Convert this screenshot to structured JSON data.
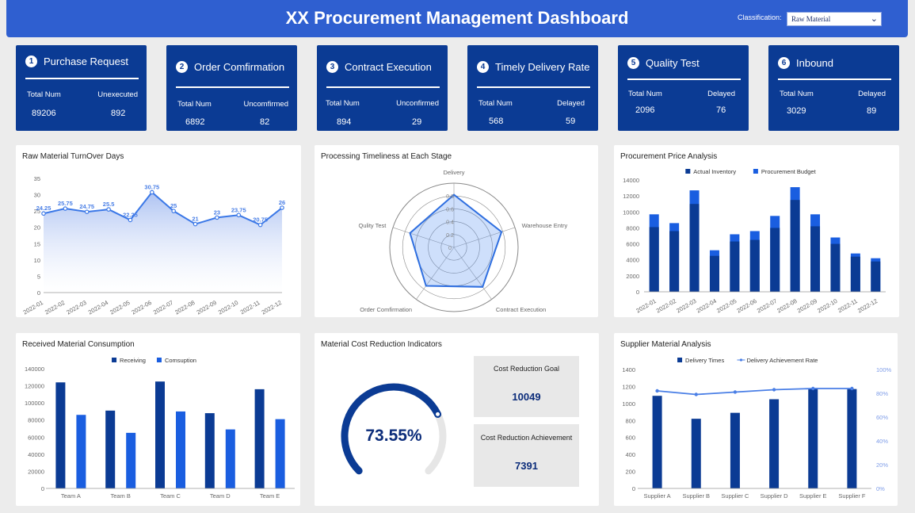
{
  "header": {
    "title": "XX Procurement Management Dashboard",
    "classification_label": "Classification:",
    "classification_value": "Raw Material"
  },
  "kpis": [
    {
      "num": "1",
      "title": "Purchase Request",
      "l1": "Total Num",
      "l2": "Unexecuted",
      "v1": "89206",
      "v2": "892"
    },
    {
      "num": "2",
      "title": "Order Comfirmation",
      "l1": "Total Num",
      "l2": "Uncomfirmed",
      "v1": "6892",
      "v2": "82"
    },
    {
      "num": "3",
      "title": "Contract Execution",
      "l1": "Total Num",
      "l2": "Unconfirmed",
      "v1": "894",
      "v2": "29"
    },
    {
      "num": "4",
      "title": "Timely Delivery Rate",
      "l1": "Total Num",
      "l2": "Delayed",
      "v1": "568",
      "v2": "59"
    },
    {
      "num": "5",
      "title": "Quality Test",
      "l1": "Total Num",
      "l2": "Delayed",
      "v1": "2096",
      "v2": "76"
    },
    {
      "num": "6",
      "title": "Inbound",
      "l1": "Total Num",
      "l2": "Delayed",
      "v1": "3029",
      "v2": "89"
    }
  ],
  "panels": {
    "turnover": "Raw Material TurnOver Days",
    "timeliness": "Processing Timeliness at Each Stage",
    "price": "Procurement Price Analysis",
    "consumption": "Received Material Consumption",
    "cost": "Material Cost Reduction Indicators",
    "supplier": "Supplier Material Analysis"
  },
  "cost_reduction": {
    "percent_label": "73.55%",
    "percent": 73.55,
    "goal_label": "Cost Reduction Goal",
    "goal_value": "10049",
    "achievement_label": "Cost Reduction Achievement",
    "achievement_value": "7391"
  },
  "colors": {
    "dark": "#0b3b94",
    "bright": "#1a5ee0",
    "line": "#3b78e7"
  },
  "chart_data": [
    {
      "type": "area",
      "title": "Raw Material TurnOver Days",
      "categories": [
        "2022-01",
        "2022-02",
        "2022-03",
        "2022-04",
        "2022-05",
        "2022-06",
        "2022-07",
        "2022-08",
        "2022-09",
        "2022-10",
        "2022-11",
        "2022-12"
      ],
      "values": [
        24.25,
        25.75,
        24.75,
        25.5,
        22.25,
        30.75,
        25,
        21,
        23,
        23.75,
        20.75,
        26
      ],
      "labels": [
        "24.25",
        "25.75",
        "24.75",
        "25.5",
        "22.25",
        "30.75",
        "25",
        "21",
        "23",
        "23.75",
        "20.75",
        "26"
      ],
      "ylim": [
        0,
        35
      ],
      "yticks": [
        0,
        5,
        10,
        15,
        20,
        25,
        30,
        35
      ]
    },
    {
      "type": "radar",
      "title": "Processing Timeliness at Each Stage",
      "indicators": [
        "Delivery",
        "Warehouse Entry",
        "Contract Execution",
        "Order Comfirmation",
        "Qulity Test"
      ],
      "values": [
        0.82,
        0.78,
        0.76,
        0.74,
        0.72
      ],
      "ring_labels": [
        "0.8",
        "0.6",
        "0.4",
        "0.2",
        "0"
      ],
      "max": 1
    },
    {
      "type": "bar",
      "title": "Procurement Price Analysis",
      "categories": [
        "2022-01",
        "2022-02",
        "2022-03",
        "2022-04",
        "2022-05",
        "2022-06",
        "2022-07",
        "2022-08",
        "2022-09",
        "2022-10",
        "2022-11",
        "2022-12"
      ],
      "series": [
        {
          "name": "Actual Inventory",
          "values": [
            8100,
            7600,
            11000,
            4500,
            6300,
            6500,
            8000,
            11500,
            8200,
            6000,
            4400,
            3800
          ]
        },
        {
          "name": "Procurement Budget",
          "values": [
            9700,
            8600,
            12700,
            5200,
            7200,
            7600,
            9500,
            13100,
            9700,
            6800,
            4800,
            4200
          ]
        }
      ],
      "ylim": [
        0,
        14000
      ],
      "yticks": [
        0,
        2000,
        4000,
        6000,
        8000,
        10000,
        12000,
        14000
      ]
    },
    {
      "type": "bar",
      "title": "Received Material Consumption",
      "categories": [
        "Team A",
        "Team B",
        "Team C",
        "Team D",
        "Team E"
      ],
      "series": [
        {
          "name": "Receiving",
          "values": [
            124000,
            91000,
            125000,
            88000,
            116000
          ]
        },
        {
          "name": "Comsuption",
          "values": [
            86000,
            65000,
            90000,
            69000,
            81000
          ]
        }
      ],
      "ylim": [
        0,
        140000
      ],
      "yticks": [
        0,
        20000,
        40000,
        60000,
        80000,
        100000,
        120000,
        140000
      ]
    },
    {
      "type": "bar",
      "title": "Supplier Material Analysis",
      "categories": [
        "Supplier A",
        "Supplier B",
        "Supplier C",
        "Supplier D",
        "Supplier E",
        "Supplier F"
      ],
      "series": [
        {
          "name": "Delivery Times",
          "values": [
            1090,
            820,
            890,
            1050,
            1180,
            1170
          ]
        },
        {
          "name": "Delivery Achievement Rate",
          "values": [
            82,
            79,
            81,
            83,
            84,
            84
          ],
          "axis": "right",
          "type": "line"
        }
      ],
      "ylim": [
        0,
        1400
      ],
      "yticks": [
        0,
        200,
        400,
        600,
        800,
        1000,
        1200,
        1400
      ],
      "y2ticks": [
        "0%",
        "20%",
        "40%",
        "60%",
        "80%",
        "100%"
      ]
    }
  ]
}
